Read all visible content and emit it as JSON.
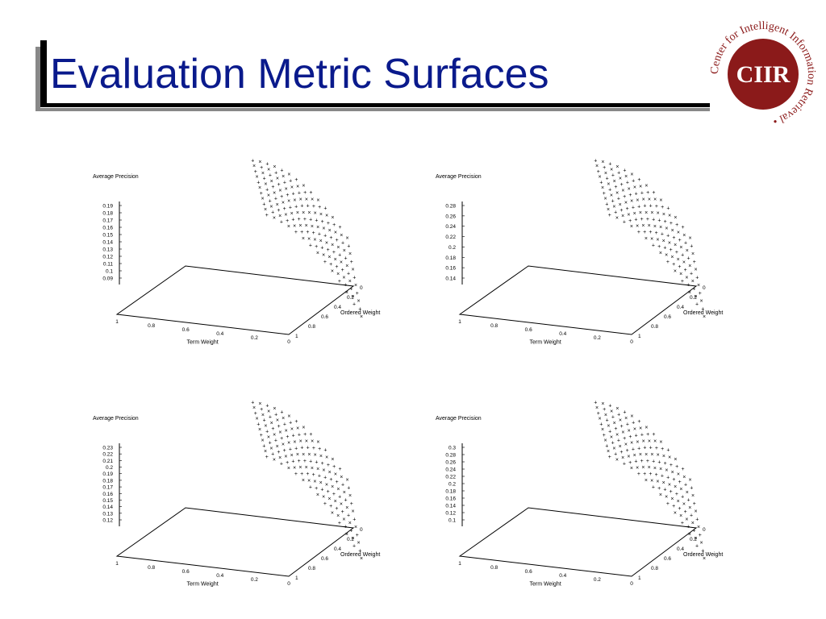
{
  "slide": {
    "title": "Evaluation Metric Surfaces",
    "logo_text": "CIIR",
    "logo_ring_text": "Center for Intelligent Information Retrieval •",
    "title_color": "#0a1a8c",
    "logo_color": "#8b1a1a"
  },
  "chart_data": [
    {
      "type": "scatter",
      "zlabel": "Average Precision",
      "xlabel": "Term Weight",
      "ylabel": "Ordered Weight",
      "x_ticks": [
        "1",
        "0.8",
        "0.6",
        "0.4",
        "0.2",
        "0"
      ],
      "y_ticks": [
        "0",
        "0.2",
        "0.4",
        "0.6",
        "0.8",
        "1"
      ],
      "z_ticks": [
        "0.19",
        "0.18",
        "0.17",
        "0.16",
        "0.15",
        "0.14",
        "0.13",
        "0.12",
        "0.11",
        "0.1",
        "0.09"
      ],
      "zlim": [
        0.09,
        0.19
      ],
      "z_max": 0.21,
      "z_min_at_corner": 0.09
    },
    {
      "type": "scatter",
      "zlabel": "Average Precision",
      "xlabel": "Term Weight",
      "ylabel": "Ordered Weight",
      "x_ticks": [
        "1",
        "0.8",
        "0.6",
        "0.4",
        "0.2",
        "0"
      ],
      "y_ticks": [
        "0",
        "0.2",
        "0.4",
        "0.6",
        "0.8",
        "1"
      ],
      "z_ticks": [
        "0.28",
        "0.26",
        "0.24",
        "0.22",
        "0.2",
        "0.18",
        "0.16",
        "0.14"
      ],
      "zlim": [
        0.14,
        0.28
      ],
      "z_max": 0.31,
      "z_min_at_corner": 0.14
    },
    {
      "type": "scatter",
      "zlabel": "Average Precision",
      "xlabel": "Term Weight",
      "ylabel": "Ordered Weight",
      "x_ticks": [
        "1",
        "0.8",
        "0.6",
        "0.4",
        "0.2",
        "0"
      ],
      "y_ticks": [
        "0",
        "0.2",
        "0.4",
        "0.6",
        "0.8",
        "1"
      ],
      "z_ticks": [
        "0.23",
        "0.22",
        "0.21",
        "0.2",
        "0.19",
        "0.18",
        "0.17",
        "0.16",
        "0.15",
        "0.14",
        "0.13",
        "0.12"
      ],
      "zlim": [
        0.12,
        0.23
      ],
      "z_max": 0.25,
      "z_min_at_corner": 0.12
    },
    {
      "type": "scatter",
      "zlabel": "Average Precision",
      "xlabel": "Term Weight",
      "ylabel": "Ordered Weight",
      "x_ticks": [
        "1",
        "0.8",
        "0.6",
        "0.4",
        "0.2",
        "0"
      ],
      "y_ticks": [
        "0",
        "0.2",
        "0.4",
        "0.6",
        "0.8",
        "1"
      ],
      "z_ticks": [
        "0.3",
        "0.28",
        "0.26",
        "0.24",
        "0.22",
        "0.2",
        "0.18",
        "0.16",
        "0.14",
        "0.12",
        "0.1"
      ],
      "zlim": [
        0.1,
        0.3
      ],
      "z_max": 0.34,
      "z_min_at_corner": 0.1
    }
  ]
}
